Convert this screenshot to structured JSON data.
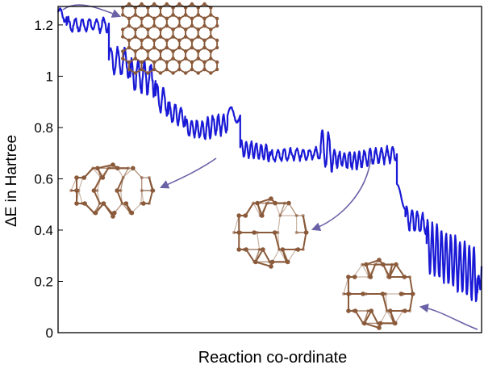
{
  "chart_data": {
    "type": "line",
    "title": "",
    "xlabel": "Reaction co-ordinate",
    "ylabel": "ΔE in Hartree",
    "x_tick_labels": [],
    "ylim": [
      0,
      1.3
    ],
    "yticks": [
      {
        "value": 0,
        "label": "0"
      },
      {
        "value": 0.2,
        "label": "0.2"
      },
      {
        "value": 0.4,
        "label": "0.4"
      },
      {
        "value": 0.6,
        "label": "0.6"
      },
      {
        "value": 0.8,
        "label": "0.8"
      },
      {
        "value": 1,
        "label": "1"
      },
      {
        "value": 1.2,
        "label": "1.2"
      }
    ],
    "grid": false,
    "legend": "none",
    "series_color": "#1a1ad6",
    "arrow_color": "#6a62a6",
    "structure_color": "#8a5a3a",
    "xlim": [
      0,
      1
    ],
    "series": [
      {
        "segments": [
          {
            "x0": 0.0,
            "x1": 0.02,
            "y_start": 1.25,
            "y_end": 1.23,
            "amp": 0.02,
            "cycles": 1,
            "jitter": 0.01
          },
          {
            "x0": 0.02,
            "x1": 0.12,
            "y_start": 1.2,
            "y_end": 1.2,
            "amp": 0.025,
            "cycles": 6,
            "jitter": 0.015
          },
          {
            "x0": 0.12,
            "x1": 0.17,
            "y_start": 1.07,
            "y_end": 1.05,
            "amp": 0.05,
            "cycles": 3,
            "jitter": 0.02
          },
          {
            "x0": 0.17,
            "x1": 0.23,
            "y_start": 1.0,
            "y_end": 0.99,
            "amp": 0.06,
            "cycles": 4,
            "jitter": 0.03
          },
          {
            "x0": 0.23,
            "x1": 0.26,
            "y_start": 0.92,
            "y_end": 0.9,
            "amp": 0.05,
            "cycles": 2,
            "jitter": 0.02
          },
          {
            "x0": 0.26,
            "x1": 0.3,
            "y_start": 0.86,
            "y_end": 0.84,
            "amp": 0.035,
            "cycles": 3,
            "jitter": 0.015
          },
          {
            "x0": 0.3,
            "x1": 0.35,
            "y_start": 0.8,
            "y_end": 0.79,
            "amp": 0.035,
            "cycles": 4,
            "jitter": 0.015
          },
          {
            "x0": 0.35,
            "x1": 0.4,
            "y_start": 0.8,
            "y_end": 0.82,
            "amp": 0.04,
            "cycles": 4,
            "jitter": 0.02
          },
          {
            "x0": 0.4,
            "x1": 0.43,
            "y_start": 0.85,
            "y_end": 0.85,
            "amp": 0.03,
            "cycles": 1,
            "jitter": 0.01
          },
          {
            "x0": 0.43,
            "x1": 0.5,
            "y_start": 0.72,
            "y_end": 0.7,
            "amp": 0.03,
            "cycles": 6,
            "jitter": 0.01
          },
          {
            "x0": 0.5,
            "x1": 0.62,
            "y_start": 0.69,
            "y_end": 0.7,
            "amp": 0.02,
            "cycles": 8,
            "jitter": 0.015
          },
          {
            "x0": 0.62,
            "x1": 0.65,
            "y_start": 0.72,
            "y_end": 0.7,
            "amp": 0.07,
            "cycles": 2,
            "jitter": 0.02
          },
          {
            "x0": 0.65,
            "x1": 0.72,
            "y_start": 0.68,
            "y_end": 0.67,
            "amp": 0.03,
            "cycles": 6,
            "jitter": 0.02
          },
          {
            "x0": 0.72,
            "x1": 0.8,
            "y_start": 0.68,
            "y_end": 0.7,
            "amp": 0.03,
            "cycles": 6,
            "jitter": 0.015
          },
          {
            "x0": 0.8,
            "x1": 0.82,
            "y_start": 0.58,
            "y_end": 0.48,
            "amp": 0.01,
            "cycles": 1,
            "jitter": 0.0
          },
          {
            "x0": 0.82,
            "x1": 0.87,
            "y_start": 0.45,
            "y_end": 0.42,
            "amp": 0.04,
            "cycles": 4,
            "jitter": 0.02
          },
          {
            "x0": 0.87,
            "x1": 0.99,
            "y_start": 0.34,
            "y_end": 0.22,
            "amp": 0.1,
            "cycles": 11,
            "jitter": 0.02
          },
          {
            "x0": 0.99,
            "x1": 1.0,
            "y_start": 0.15,
            "y_end": 0.25,
            "amp": 0.05,
            "cycles": 1,
            "jitter": 0.02
          }
        ]
      }
    ],
    "inset_structures": [
      "graphene-flake",
      "partial-cage",
      "open-fullerene-cage",
      "fullerene-c60"
    ]
  }
}
